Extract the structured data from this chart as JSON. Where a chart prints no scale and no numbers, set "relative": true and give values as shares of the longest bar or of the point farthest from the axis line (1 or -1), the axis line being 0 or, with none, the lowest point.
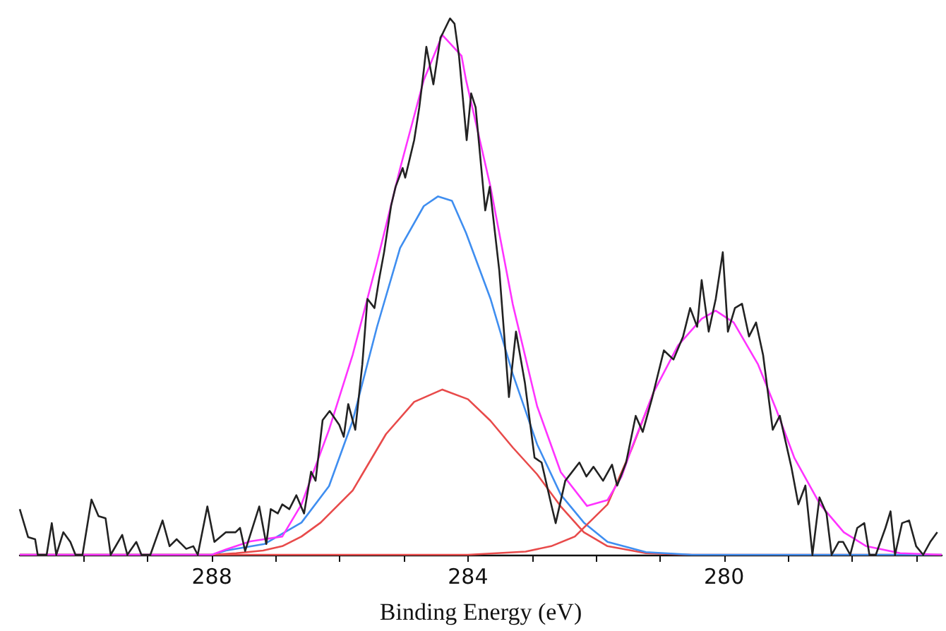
{
  "chart_data": {
    "type": "line",
    "relative": true,
    "xlabel": "Binding Energy (eV)",
    "xlim": [
      291,
      276.6
    ],
    "xticks": [
      {
        "value": 290,
        "label": null
      },
      {
        "value": 289,
        "label": null
      },
      288,
      {
        "value": 287,
        "label": null
      },
      {
        "value": 286,
        "label": null
      },
      {
        "value": 285,
        "label": null
      },
      284,
      {
        "value": 283,
        "label": null
      },
      {
        "value": 282,
        "label": null
      },
      {
        "value": 281,
        "label": null
      },
      280,
      {
        "value": 279,
        "label": null
      },
      {
        "value": 278,
        "label": null
      },
      {
        "value": 277,
        "label": null
      }
    ],
    "grid": false,
    "marker": "none",
    "line_style": "solid",
    "series": [
      {
        "color": "#e84a4a",
        "x": [
          291,
          288,
          287.62,
          287.2,
          286.9,
          286.6,
          286.3,
          285.8,
          285.28,
          284.84,
          284.4,
          284.0,
          283.65,
          283.3,
          282.92,
          282.55,
          282.19,
          281.82,
          281.22,
          280.5,
          276.6
        ],
        "values": [
          0,
          0,
          0.003,
          0.008,
          0.016,
          0.034,
          0.06,
          0.12,
          0.225,
          0.285,
          0.308,
          0.29,
          0.25,
          0.2,
          0.15,
          0.09,
          0.042,
          0.016,
          0.003,
          0,
          0
        ]
      },
      {
        "color": "#3f8ef0",
        "x": [
          291,
          288,
          287.78,
          287.18,
          286.6,
          286.17,
          285.8,
          285.42,
          285.06,
          284.69,
          284.47,
          284.25,
          284.03,
          283.65,
          283.3,
          282.92,
          282.55,
          282.19,
          281.82,
          281.22,
          280.5,
          276.6
        ],
        "values": [
          0,
          0,
          0.008,
          0.02,
          0.06,
          0.128,
          0.25,
          0.425,
          0.572,
          0.65,
          0.668,
          0.66,
          0.6,
          0.478,
          0.337,
          0.206,
          0.112,
          0.06,
          0.024,
          0.005,
          0,
          0
        ]
      },
      {
        "color": "#e84a4a",
        "x": [
          291,
          284,
          283.1,
          282.7,
          282.33,
          281.82,
          281.44,
          281.1
        ],
        "values": [
          0,
          0,
          0.006,
          0.016,
          0.034,
          0.094,
          0.198,
          0.303
        ]
      },
      {
        "color": "#ff33ff",
        "x": [
          291,
          288,
          287.78,
          287.4,
          286.9,
          286.6,
          286.17,
          285.8,
          285.42,
          285.06,
          284.69,
          284.4,
          284.1,
          284.03,
          283.65,
          283.3,
          282.92,
          282.55,
          282.14,
          281.82,
          281.6,
          281.44,
          281.1,
          280.72,
          280.35,
          280.13,
          279.85,
          279.47,
          279.18,
          278.9,
          278.5,
          278.13,
          277.78,
          277.25,
          276.6
        ],
        "values": [
          0,
          0,
          0.01,
          0.025,
          0.034,
          0.094,
          0.233,
          0.373,
          0.546,
          0.72,
          0.885,
          0.969,
          0.93,
          0.885,
          0.687,
          0.467,
          0.277,
          0.154,
          0.091,
          0.102,
          0.146,
          0.2,
          0.303,
          0.39,
          0.44,
          0.455,
          0.433,
          0.355,
          0.269,
          0.18,
          0.094,
          0.042,
          0.016,
          0.003,
          0
        ]
      },
      {
        "color": "#222222",
        "x": [
          291,
          290.87,
          290.76,
          290.72,
          290.58,
          290.5,
          290.43,
          290.32,
          290.21,
          290.13,
          290.02,
          289.88,
          289.77,
          289.66,
          289.58,
          289.4,
          289.32,
          289.18,
          289.1,
          288.96,
          288.77,
          288.66,
          288.55,
          288.4,
          288.29,
          288.22,
          288.07,
          287.96,
          287.78,
          287.63,
          287.56,
          287.48,
          287.26,
          287.15,
          287.08,
          286.97,
          286.9,
          286.79,
          286.68,
          286.56,
          286.45,
          286.38,
          286.27,
          286.16,
          286.01,
          285.94,
          285.87,
          285.76,
          285.65,
          285.57,
          285.46,
          285.39,
          285.31,
          285.2,
          285.13,
          285.02,
          284.98,
          284.91,
          284.84,
          284.76,
          284.69,
          284.65,
          284.54,
          284.43,
          284.39,
          284.28,
          284.21,
          284.14,
          284.02,
          283.95,
          283.88,
          283.73,
          283.66,
          283.51,
          283.36,
          283.25,
          283.11,
          282.96,
          282.85,
          282.7,
          282.63,
          282.48,
          282.26,
          282.15,
          282.04,
          281.89,
          281.75,
          281.67,
          281.53,
          281.38,
          281.27,
          281.12,
          280.94,
          280.79,
          280.64,
          280.53,
          280.42,
          280.35,
          280.24,
          280.13,
          280.02,
          279.94,
          279.83,
          279.72,
          279.61,
          279.5,
          279.39,
          279.24,
          279.13,
          278.95,
          278.84,
          278.73,
          278.62,
          278.51,
          278.4,
          278.32,
          278.21,
          278.14,
          278.03,
          277.92,
          277.81,
          277.73,
          277.63,
          277.48,
          277.4,
          277.33,
          277.22,
          277.11,
          277,
          276.89,
          276.78,
          276.67
        ],
        "values": [
          0.085,
          0.033,
          0.029,
          0,
          0,
          0.059,
          0,
          0.042,
          0.024,
          0,
          0,
          0.103,
          0.072,
          0.068,
          0,
          0.037,
          0,
          0.024,
          0,
          0,
          0.064,
          0.016,
          0.029,
          0.011,
          0.016,
          0,
          0.09,
          0.024,
          0.042,
          0.042,
          0.05,
          0.007,
          0.09,
          0.02,
          0.085,
          0.077,
          0.094,
          0.085,
          0.111,
          0.077,
          0.155,
          0.138,
          0.251,
          0.268,
          0.242,
          0.22,
          0.281,
          0.233,
          0.355,
          0.477,
          0.46,
          0.512,
          0.564,
          0.651,
          0.686,
          0.721,
          0.703,
          0.738,
          0.773,
          0.834,
          0.903,
          0.947,
          0.877,
          0.964,
          0.973,
          1,
          0.99,
          0.93,
          0.773,
          0.86,
          0.834,
          0.642,
          0.686,
          0.529,
          0.294,
          0.416,
          0.32,
          0.181,
          0.172,
          0.094,
          0.059,
          0.138,
          0.172,
          0.146,
          0.164,
          0.138,
          0.168,
          0.129,
          0.172,
          0.259,
          0.229,
          0.294,
          0.381,
          0.364,
          0.407,
          0.46,
          0.425,
          0.512,
          0.416,
          0.477,
          0.564,
          0.416,
          0.46,
          0.468,
          0.407,
          0.433,
          0.372,
          0.233,
          0.259,
          0.164,
          0.094,
          0.129,
          0,
          0.107,
          0.077,
          0,
          0.024,
          0.024,
          0,
          0.05,
          0.059,
          0,
          0,
          0.05,
          0.081,
          0,
          0.059,
          0.064,
          0.016,
          0,
          0.024,
          0.042
        ]
      }
    ]
  }
}
